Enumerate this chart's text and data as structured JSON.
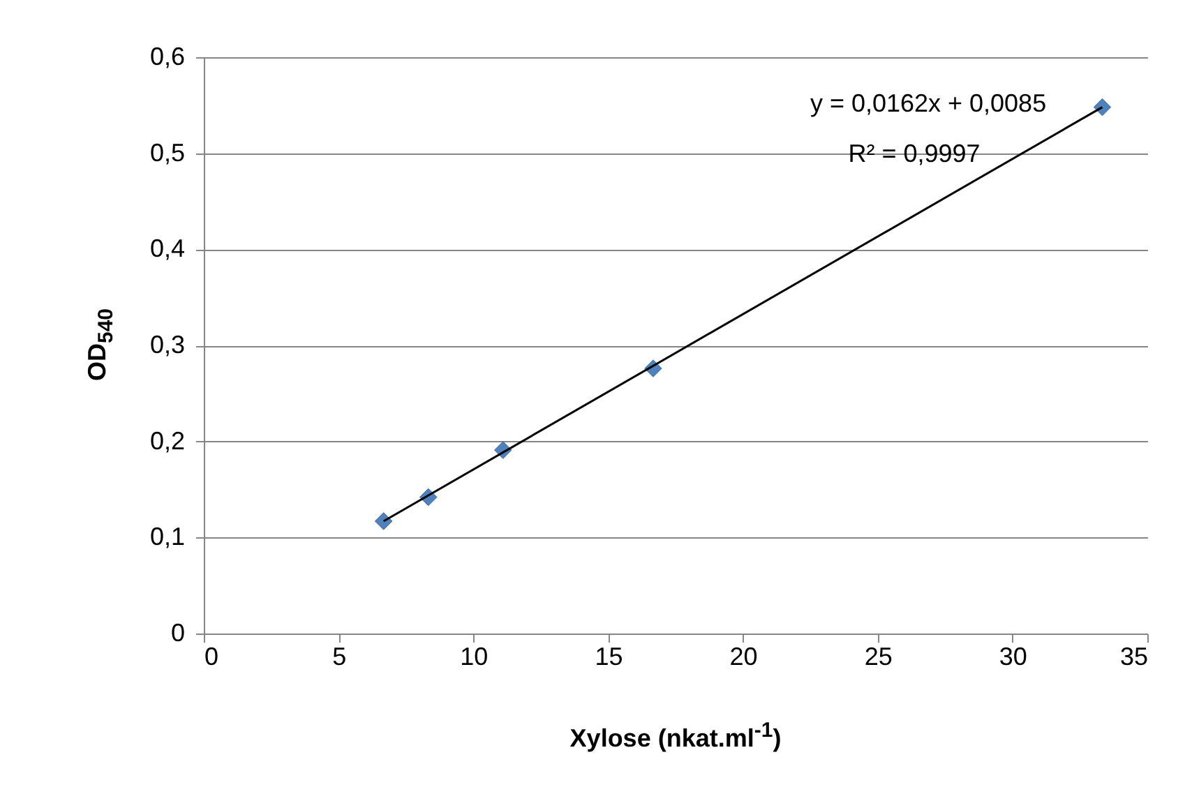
{
  "chart_data": {
    "type": "scatter",
    "xlabel": "Xylose (nkat.ml$^{-1}$)",
    "ylabel": "OD$_{540}$",
    "annotations": [
      "y = 0,0162x + 0,0085",
      "R² = 0,9997"
    ],
    "xlim": [
      0,
      35
    ],
    "xticks": [
      0,
      5,
      10,
      15,
      20,
      25,
      30,
      35
    ],
    "ylim": [
      0,
      0.6
    ],
    "yticks": [
      0,
      {
        "value": 0.1,
        "label": "0,1"
      },
      {
        "value": 0.2,
        "label": "0,2"
      },
      {
        "value": 0.3,
        "label": "0,3"
      },
      {
        "value": 0.4,
        "label": "0,4"
      },
      {
        "value": 0.5,
        "label": "0,5"
      },
      {
        "value": 0.6,
        "label": "0,6"
      }
    ],
    "grid": "y",
    "marker": "diamond",
    "series": [
      {
        "color": "#4f81bd",
        "x": [
          6.67,
          8.33,
          11.1,
          16.67,
          33.33
        ],
        "values": [
          0.117,
          0.142,
          0.191,
          0.276,
          0.548
        ]
      },
      {
        "type": "line",
        "color": "#000000",
        "line_style": "solid",
        "marker": "none",
        "x": [
          6.67,
          33.33
        ],
        "values": [
          0.117,
          0.548
        ]
      }
    ]
  }
}
